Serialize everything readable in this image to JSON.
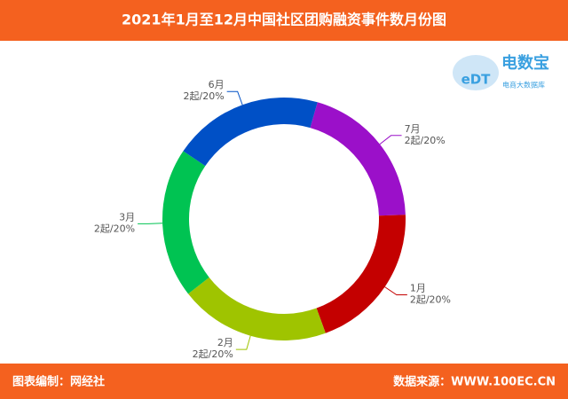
{
  "chart_data": {
    "type": "donut",
    "title": "2021年1月至12月中国社区团购融资事件数月份图",
    "categories": [
      "7月",
      "1月",
      "2月",
      "3月",
      "6月"
    ],
    "values": [
      2,
      2,
      2,
      2,
      2
    ],
    "value_labels": [
      "2起/20%",
      "2起/20%",
      "2起/20%",
      "2起/20%",
      "2起/20%"
    ],
    "colors": [
      "#9b10c9",
      "#c40000",
      "#9fc400",
      "#00c352",
      "#0050c6"
    ]
  },
  "logo": {
    "mark": "eDT",
    "name": "电数宝",
    "tagline": "电商大数据库"
  },
  "footer": {
    "left": "图表编制：网经社",
    "right": "数据来源：WWW.100EC.CN"
  }
}
